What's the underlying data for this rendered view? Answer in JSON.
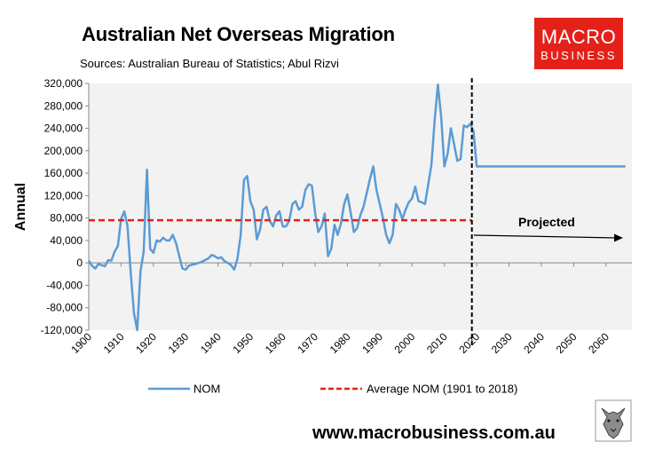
{
  "header": {
    "title": "Australian Net Overseas Migration",
    "subtitle": "Sources: Australian Bureau of Statistics; Abul Rizvi"
  },
  "logo": {
    "line1": "MACRO",
    "line2": "BUSINESS",
    "color": "#e32119"
  },
  "footer": {
    "url": "www.macrobusiness.com.au"
  },
  "chart_data": {
    "type": "line",
    "ylabel": "Annual",
    "ylim": [
      -120000,
      320000
    ],
    "yticks": [
      -120000,
      -80000,
      -40000,
      0,
      40000,
      80000,
      120000,
      160000,
      200000,
      240000,
      280000,
      320000
    ],
    "ytick_labels": [
      "-120,000",
      "-80,000",
      "-40,000",
      "0",
      "40,000",
      "80,000",
      "120,000",
      "160,000",
      "200,000",
      "240,000",
      "280,000",
      "320,000"
    ],
    "xlim": [
      1900,
      2068
    ],
    "xticks": [
      1900,
      1910,
      1920,
      1930,
      1940,
      1950,
      1960,
      1970,
      1980,
      1990,
      2000,
      2010,
      2020,
      2030,
      2040,
      2050,
      2060
    ],
    "xtick_labels": [
      "1900",
      "1910",
      "1920",
      "1930",
      "1940",
      "1950",
      "1960",
      "1970",
      "1980",
      "1990",
      "2000",
      "2010",
      "2020",
      "2030",
      "2040",
      "2050",
      "2060"
    ],
    "grid": false,
    "legend": "bottom",
    "projection_marker_x": 2018.5,
    "annotation": "Projected",
    "series": [
      {
        "name": "NOM",
        "color": "#5b9bd5",
        "x": [
          1900,
          1901,
          1902,
          1903,
          1904,
          1905,
          1906,
          1907,
          1908,
          1909,
          1910,
          1911,
          1912,
          1913,
          1914,
          1915,
          1916,
          1917,
          1918,
          1919,
          1920,
          1921,
          1922,
          1923,
          1924,
          1925,
          1926,
          1927,
          1928,
          1929,
          1930,
          1931,
          1932,
          1933,
          1934,
          1935,
          1936,
          1937,
          1938,
          1939,
          1940,
          1941,
          1942,
          1943,
          1944,
          1945,
          1946,
          1947,
          1948,
          1949,
          1950,
          1951,
          1952,
          1953,
          1954,
          1955,
          1956,
          1957,
          1958,
          1959,
          1960,
          1961,
          1962,
          1963,
          1964,
          1965,
          1966,
          1967,
          1968,
          1969,
          1970,
          1971,
          1972,
          1973,
          1974,
          1975,
          1976,
          1977,
          1978,
          1979,
          1980,
          1981,
          1982,
          1983,
          1984,
          1985,
          1986,
          1987,
          1988,
          1989,
          1990,
          1991,
          1992,
          1993,
          1994,
          1995,
          1996,
          1997,
          1998,
          1999,
          2000,
          2001,
          2002,
          2003,
          2004,
          2005,
          2006,
          2007,
          2008,
          2009,
          2010,
          2011,
          2012,
          2013,
          2014,
          2015,
          2016,
          2017,
          2018,
          2019,
          2020,
          2025,
          2030,
          2035,
          2040,
          2045,
          2050,
          2055,
          2060,
          2066
        ],
        "values": [
          4000,
          -5000,
          -10000,
          -2000,
          -4000,
          -6000,
          5000,
          4000,
          20000,
          30000,
          78000,
          92000,
          65000,
          -20000,
          -90000,
          -120000,
          -15000,
          20000,
          166000,
          25000,
          18000,
          40000,
          38000,
          45000,
          40000,
          40000,
          50000,
          35000,
          12000,
          -10000,
          -12000,
          -5000,
          -3000,
          -2000,
          0,
          2000,
          5000,
          8000,
          14000,
          12000,
          8000,
          10000,
          3000,
          0,
          -4000,
          -12000,
          8000,
          50000,
          148000,
          155000,
          110000,
          95000,
          42000,
          60000,
          95000,
          100000,
          75000,
          65000,
          85000,
          92000,
          65000,
          65000,
          75000,
          105000,
          110000,
          95000,
          100000,
          130000,
          140000,
          138000,
          90000,
          55000,
          65000,
          88000,
          12000,
          25000,
          68000,
          50000,
          70000,
          105000,
          122000,
          90000,
          55000,
          62000,
          85000,
          100000,
          125000,
          150000,
          172000,
          130000,
          105000,
          80000,
          50000,
          35000,
          50000,
          105000,
          95000,
          78000,
          95000,
          108000,
          115000,
          136000,
          110000,
          108000,
          105000,
          140000,
          175000,
          255000,
          318000,
          260000,
          172000,
          195000,
          240000,
          212000,
          182000,
          185000,
          245000,
          242000,
          248000,
          235000,
          172000,
          172000,
          172000,
          172000,
          172000,
          172000,
          172000,
          172000,
          172000,
          172000
        ]
      },
      {
        "name": "Average NOM (1901 to 2018)",
        "color": "#e32119",
        "x": [
          1900,
          2018.5
        ],
        "values": [
          76000,
          76000
        ]
      }
    ]
  }
}
